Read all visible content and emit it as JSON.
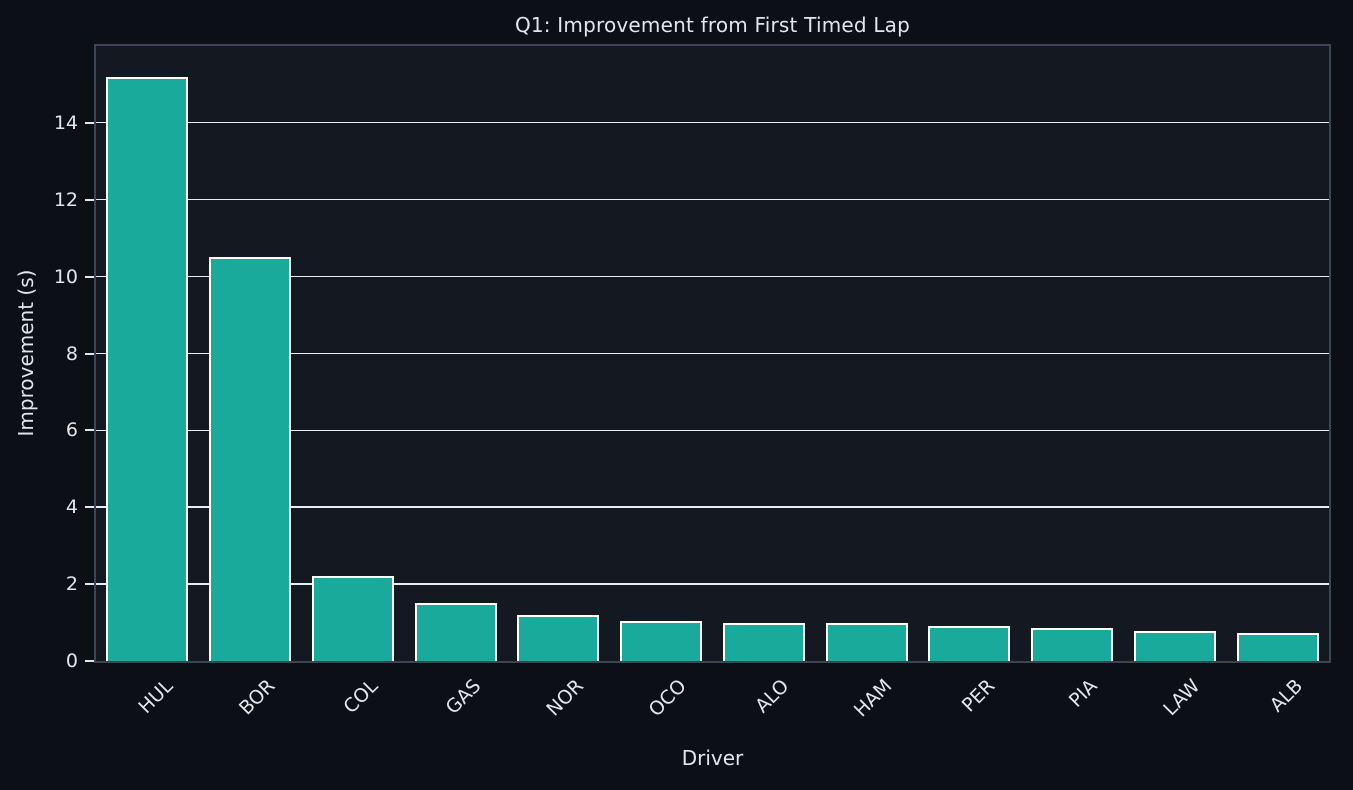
{
  "chart_data": {
    "type": "bar",
    "title": "Q1: Improvement from First Timed Lap",
    "xlabel": "Driver",
    "ylabel": "Improvement (s)",
    "categories": [
      "HUL",
      "BOR",
      "COL",
      "GAS",
      "NOR",
      "OCO",
      "ALO",
      "HAM",
      "PER",
      "PIA",
      "LAW",
      "ALB"
    ],
    "values": [
      15.2,
      10.5,
      2.2,
      1.5,
      1.2,
      1.05,
      1.0,
      1.0,
      0.92,
      0.85,
      0.79,
      0.74
    ],
    "ylim": [
      0,
      16
    ],
    "yticks": [
      0,
      2,
      4,
      6,
      8,
      10,
      12,
      14
    ],
    "grid": true,
    "legend": false,
    "bar_width_fraction": 0.8,
    "colors": {
      "bar_fill": "#1aaa9b",
      "bar_edge": "#ffffff",
      "figure_bg": "#0c0f15",
      "axes_bg": "#131821",
      "spine": "#3d4454",
      "grid": "#e9edf2",
      "text": "#e2e6ec"
    }
  }
}
